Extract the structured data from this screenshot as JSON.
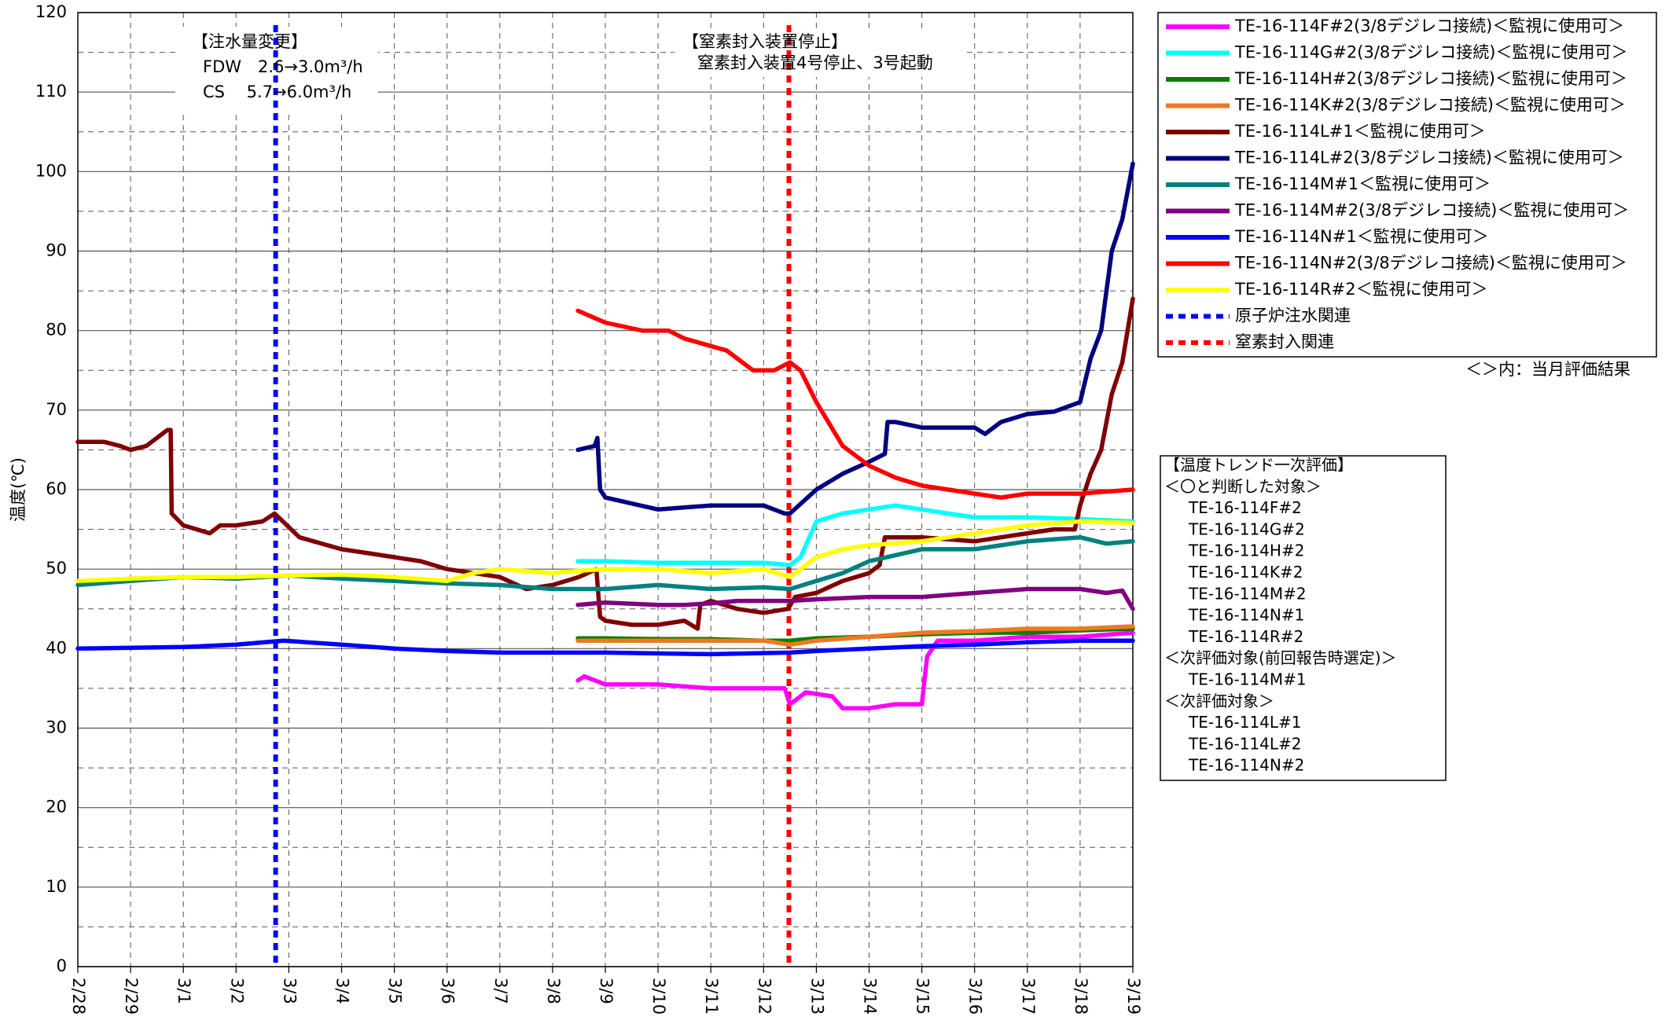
{
  "chart_data": {
    "type": "line",
    "ylabel": "温度(℃)",
    "ylim": [
      0,
      120
    ],
    "yticks": [
      0,
      10,
      20,
      30,
      40,
      50,
      60,
      70,
      80,
      90,
      100,
      110,
      120
    ],
    "yminorticks": [
      5,
      15,
      25,
      35,
      45,
      55,
      65,
      75,
      85,
      95,
      105,
      115
    ],
    "xlim": [
      0,
      20
    ],
    "xticks": [
      {
        "value": 0,
        "label": "2/28"
      },
      {
        "value": 1,
        "label": "2/29"
      },
      {
        "value": 2,
        "label": "3/1"
      },
      {
        "value": 3,
        "label": "3/2"
      },
      {
        "value": 4,
        "label": "3/3"
      },
      {
        "value": 5,
        "label": "3/4"
      },
      {
        "value": 6,
        "label": "3/5"
      },
      {
        "value": 7,
        "label": "3/6"
      },
      {
        "value": 8,
        "label": "3/7"
      },
      {
        "value": 9,
        "label": "3/8"
      },
      {
        "value": 10,
        "label": "3/9"
      },
      {
        "value": 11,
        "label": "3/10"
      },
      {
        "value": 12,
        "label": "3/11"
      },
      {
        "value": 13,
        "label": "3/12"
      },
      {
        "value": 14,
        "label": "3/13"
      },
      {
        "value": 15,
        "label": "3/14"
      },
      {
        "value": 16,
        "label": "3/15"
      },
      {
        "value": 17,
        "label": "3/16"
      },
      {
        "value": 18,
        "label": "3/17"
      },
      {
        "value": 19,
        "label": "3/18"
      },
      {
        "value": 20,
        "label": "3/19"
      }
    ],
    "grid": true,
    "series": [
      {
        "name": "TE-16-114F#2(3/8デジレコ接続)＜監視に使用可＞",
        "color": "#ff00ff",
        "x": [
          9.48,
          9.6,
          10,
          10.5,
          11,
          12,
          13,
          13.4,
          13.5,
          13.8,
          14.3,
          14.5,
          15,
          15.5,
          16,
          16.1,
          16.3,
          17,
          18,
          19,
          20
        ],
        "values": [
          36,
          36.5,
          35.5,
          35.5,
          35.5,
          35,
          35,
          35,
          33,
          34.5,
          34,
          32.5,
          32.5,
          33,
          33,
          39,
          41,
          41,
          41.5,
          41.5,
          42
        ]
      },
      {
        "name": "TE-16-114G#2(3/8デジレコ接続)＜監視に使用可＞",
        "color": "#00ffff",
        "x": [
          9.48,
          10,
          11,
          12,
          13,
          13.5,
          13.7,
          14,
          14.5,
          15,
          15.5,
          16,
          16.5,
          17,
          18,
          19,
          20
        ],
        "values": [
          51,
          51,
          50.8,
          50.8,
          50.8,
          50.5,
          51.5,
          56,
          57,
          57.5,
          58,
          57.5,
          57,
          56.5,
          56.5,
          56.3,
          56
        ]
      },
      {
        "name": "TE-16-114H#2(3/8デジレコ接続)＜監視に使用可＞",
        "color": "#008000",
        "x": [
          9.48,
          10,
          11,
          12,
          13,
          13.5,
          14,
          15,
          16,
          17,
          18,
          19,
          20
        ],
        "values": [
          41.3,
          41.3,
          41.2,
          41.2,
          41,
          41,
          41.3,
          41.5,
          41.8,
          42,
          42,
          42.3,
          42.5
        ]
      },
      {
        "name": "TE-16-114K#2(3/8デジレコ接続)＜監視に使用可＞",
        "color": "#f07820",
        "x": [
          9.48,
          10,
          11,
          12,
          13,
          13.5,
          14,
          15,
          16,
          17,
          18,
          19,
          20
        ],
        "values": [
          41,
          41,
          41,
          41,
          41,
          40.5,
          41,
          41.5,
          42,
          42.2,
          42.5,
          42.5,
          42.8
        ]
      },
      {
        "name": "TE-16-114L#1＜監視に使用可＞",
        "color": "#800000",
        "x": [
          0,
          0.5,
          0.8,
          1,
          1.3,
          1.5,
          1.7,
          1.76,
          1.78,
          2,
          2.5,
          2.7,
          3,
          3.5,
          3.73,
          4.2,
          5,
          5.5,
          6,
          6.5,
          7,
          7.5,
          8,
          8.5,
          9,
          9.5,
          9.83,
          9.9,
          10,
          10.5,
          11,
          11.5,
          11.75,
          11.8,
          12,
          12.5,
          13,
          13.46,
          13.6,
          14,
          14.5,
          15,
          15.2,
          15.3,
          16,
          17,
          17.5,
          18,
          18.5,
          18.9,
          19,
          19.2,
          19.4,
          19.6,
          19.8,
          20
        ],
        "values": [
          66,
          66,
          65.5,
          65,
          65.5,
          66.5,
          67.5,
          67.5,
          57,
          55.5,
          54.5,
          55.5,
          55.5,
          56,
          57,
          54,
          52.5,
          52,
          51.5,
          51,
          50,
          49.5,
          49,
          47.5,
          48,
          49,
          50,
          44,
          43.5,
          43,
          43,
          43.5,
          42.5,
          45.5,
          46,
          45,
          44.5,
          45,
          46.5,
          47,
          48.5,
          49.5,
          50.5,
          54,
          54,
          53.5,
          54,
          54.5,
          55,
          55,
          58,
          62,
          65,
          72,
          76,
          84
        ]
      },
      {
        "name": "TE-16-114L#2(3/8デジレコ接続)＜監視に使用可＞",
        "color": "#000080",
        "x": [
          9.48,
          9.8,
          9.85,
          9.9,
          10,
          11,
          12,
          12.5,
          13,
          13.4,
          13.5,
          14,
          14.5,
          15,
          15.3,
          15.35,
          15.5,
          16,
          17,
          17.2,
          17.5,
          18,
          18.5,
          19,
          19.2,
          19.4,
          19.6,
          19.8,
          20
        ],
        "values": [
          65,
          65.5,
          66.5,
          60,
          59,
          57.5,
          58,
          58,
          58,
          57,
          57,
          60,
          62,
          63.5,
          64.5,
          68.5,
          68.5,
          67.8,
          67.8,
          67,
          68.5,
          69.5,
          69.8,
          71,
          76.5,
          80,
          90,
          94,
          101
        ]
      },
      {
        "name": "TE-16-114M#1＜監視に使用可＞",
        "color": "#008080",
        "x": [
          0,
          1,
          2,
          3,
          4,
          5,
          6,
          7,
          8,
          9,
          10,
          11,
          12,
          13,
          13.5,
          14,
          14.5,
          15,
          16,
          17,
          18,
          19,
          19.5,
          20
        ],
        "values": [
          48,
          48.5,
          49,
          48.8,
          49.2,
          48.8,
          48.5,
          48.2,
          48,
          47.5,
          47.5,
          48,
          47.5,
          47.7,
          47.5,
          48.5,
          49.5,
          51,
          52.5,
          52.5,
          53.5,
          54,
          53.2,
          53.5
        ]
      },
      {
        "name": "TE-16-114M#2(3/8デジレコ接続)＜監視に使用可＞",
        "color": "#800080",
        "x": [
          9.48,
          10,
          11,
          11.5,
          12,
          12.5,
          13,
          13.5,
          14,
          15,
          16,
          17,
          18,
          19,
          19.5,
          19.8,
          20
        ],
        "values": [
          45.5,
          45.8,
          45.5,
          45.5,
          45.7,
          46,
          46,
          46,
          46.2,
          46.5,
          46.5,
          47,
          47.5,
          47.5,
          47,
          47.3,
          45
        ]
      },
      {
        "name": "TE-16-114N#1＜監視に使用可＞",
        "color": "#0000ff",
        "x": [
          0,
          2,
          3,
          3.9,
          5,
          6,
          7,
          8,
          9,
          10,
          12,
          13.5,
          14,
          15,
          16,
          17,
          18,
          19,
          20
        ],
        "values": [
          40,
          40.2,
          40.5,
          41,
          40.5,
          40,
          39.7,
          39.5,
          39.5,
          39.5,
          39.3,
          39.5,
          39.7,
          40,
          40.3,
          40.5,
          40.8,
          41,
          41
        ]
      },
      {
        "name": "TE-16-114N#2(3/8デジレコ接続)＜監視に使用可＞",
        "color": "#ff0000",
        "x": [
          9.48,
          10,
          10.7,
          11.2,
          11.5,
          12.3,
          12.8,
          13.2,
          13.5,
          13.7,
          14,
          14.5,
          15,
          15.5,
          16,
          16.5,
          17,
          17.5,
          18,
          18.5,
          19,
          20
        ],
        "values": [
          82.5,
          81,
          80,
          80,
          79,
          77.5,
          75,
          75,
          76,
          75,
          71,
          65.5,
          63,
          61.5,
          60.5,
          60,
          59.5,
          59,
          59.5,
          59.5,
          59.5,
          60
        ]
      },
      {
        "name": "TE-16-114R#2＜監視に使用可＞",
        "color": "#ffff00",
        "x": [
          0,
          1,
          2,
          3,
          4,
          5,
          6,
          7,
          7.5,
          8,
          9,
          9.5,
          10,
          11,
          12,
          13,
          13.5,
          13.6,
          14,
          14.5,
          15,
          16,
          16.5,
          17,
          18,
          19,
          20
        ],
        "values": [
          48.5,
          48.8,
          49,
          49,
          49.2,
          49.3,
          49,
          48.5,
          49.5,
          50,
          49.5,
          49.8,
          50,
          50,
          49.5,
          50,
          49,
          49.5,
          51.5,
          52.5,
          53,
          53.5,
          54,
          54.5,
          55.5,
          56,
          55.8
        ]
      }
    ],
    "markers": [
      {
        "name": "原子炉注水関連",
        "color": "#0000ff",
        "x": 3.75
      },
      {
        "name": "窒素封入関連",
        "color": "#ff0000",
        "x": 13.48
      }
    ],
    "legend_note": "＜＞内：当月評価結果",
    "annotations": [
      {
        "lines": [
          "【注水量変更】",
          "FDW　2.6→3.0m³/h",
          "CS　 5.7→6.0m³/h"
        ]
      },
      {
        "lines": [
          "【窒素封入装置停止】",
          "窒素封入装置4号停止、3号起動"
        ]
      }
    ],
    "evaluation_box": {
      "title": "【温度トレンド一次評価】",
      "groups": [
        {
          "heading": "＜〇と判断した対象＞",
          "items": [
            "TE-16-114F#2",
            "TE-16-114G#2",
            "TE-16-114H#2",
            "TE-16-114K#2",
            "TE-16-114M#2",
            "TE-16-114N#1",
            "TE-16-114R#2"
          ]
        },
        {
          "heading": "＜次評価対象(前回報告時選定)＞",
          "items": [
            "TE-16-114M#1"
          ]
        },
        {
          "heading": "＜次評価対象＞",
          "items": [
            "TE-16-114L#1",
            "TE-16-114L#2",
            "TE-16-114N#2"
          ]
        }
      ]
    }
  }
}
